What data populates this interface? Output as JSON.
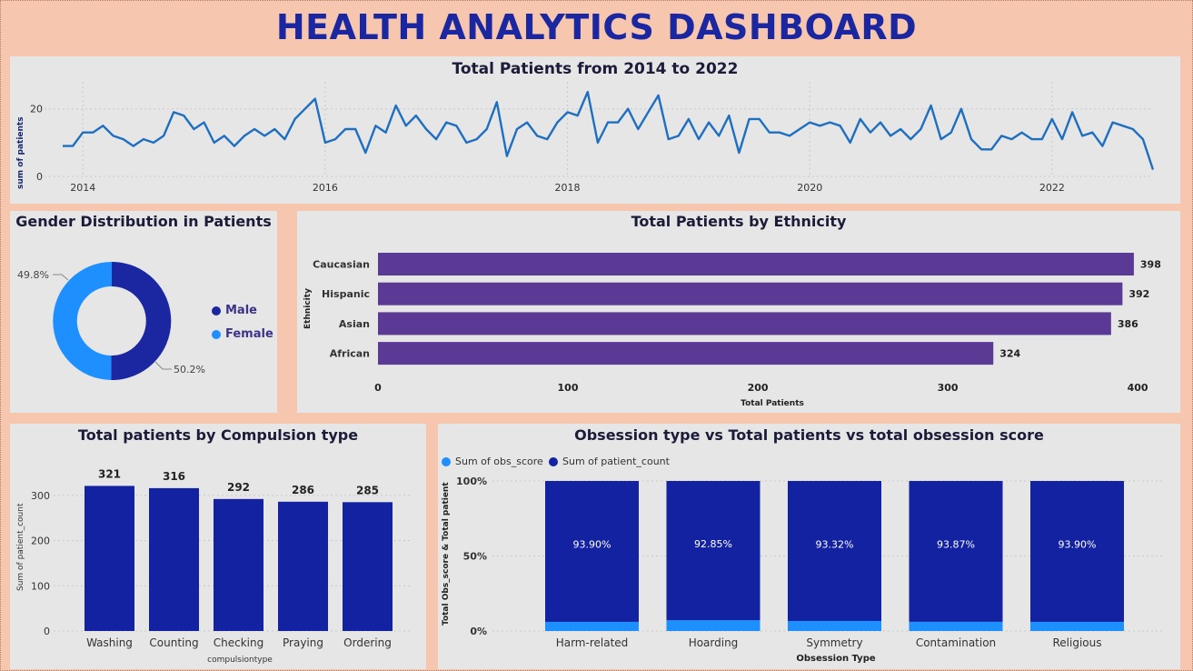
{
  "page": {
    "title": "HEALTH ANALYTICS DASHBOARD"
  },
  "colors": {
    "background": "#f6c6ae",
    "panel": "#e6e6e6",
    "title": "#1a27a1",
    "line": "#1f6fc0",
    "male": "#1a27a1",
    "female": "#1e8fff",
    "ethnicity_bar": "#5b3a95",
    "compulsion_bar": "#1322a0",
    "obs_score": "#1e8fff",
    "patient_count": "#1322a0"
  },
  "line_panel": {
    "title": "Total Patients from 2014 to 2022",
    "ylabel": "sum of patients",
    "xticks": [
      "2014",
      "2016",
      "2018",
      "2020",
      "2022"
    ],
    "yticks": [
      "0",
      "20"
    ]
  },
  "gender_panel": {
    "title": "Gender Distribution in Patients",
    "legend": [
      {
        "label": "Male"
      },
      {
        "label": "Female"
      }
    ],
    "female_pct_label": "49.8%",
    "male_pct_label": "50.2%"
  },
  "ethnicity_panel": {
    "title": "Total Patients by Ethnicity",
    "ylabel": "Ethnicity",
    "xlabel": "Total Patients",
    "xticks": [
      "0",
      "100",
      "200",
      "300",
      "400"
    ]
  },
  "compulsion_panel": {
    "title": "Total patients by Compulsion type",
    "ylabel": "Sum of patient_count",
    "xlabel": "compulsiontype",
    "yticks": [
      "0",
      "100",
      "200",
      "300"
    ]
  },
  "obsession_panel": {
    "title": "Obsession type vs Total patients vs total obsession score",
    "legend": [
      {
        "label": "Sum of obs_score"
      },
      {
        "label": "Sum of patient_count"
      }
    ],
    "ylabel": "Total Obs_score & Total patient",
    "xlabel": "Obsession Type",
    "yticks": [
      "0%",
      "50%",
      "100%"
    ]
  },
  "chart_data": [
    {
      "type": "line",
      "title": "Total Patients from 2014 to 2022",
      "xlabel": "",
      "ylabel": "sum of patients",
      "x_start": "2013-11",
      "x_step": "month",
      "xlim": [
        "2013-11",
        "2022-11"
      ],
      "ylim": [
        0,
        28
      ],
      "grid": true,
      "values": [
        9,
        9,
        13,
        13,
        15,
        12,
        11,
        9,
        11,
        10,
        12,
        19,
        18,
        14,
        16,
        10,
        12,
        9,
        12,
        14,
        12,
        14,
        11,
        17,
        20,
        23,
        10,
        11,
        14,
        14,
        7,
        15,
        13,
        21,
        15,
        18,
        14,
        11,
        16,
        15,
        10,
        11,
        14,
        22,
        6,
        14,
        16,
        12,
        11,
        16,
        19,
        18,
        25,
        10,
        16,
        16,
        20,
        14,
        19,
        24,
        11,
        12,
        17,
        11,
        16,
        12,
        18,
        7,
        17,
        17,
        13,
        13,
        12,
        14,
        16,
        15,
        16,
        15,
        10,
        17,
        13,
        16,
        12,
        14,
        11,
        14,
        21,
        11,
        13,
        20,
        11,
        8,
        8,
        12,
        11,
        13,
        11,
        11,
        17,
        11,
        19,
        12,
        13,
        9,
        16,
        15,
        14,
        11,
        2
      ]
    },
    {
      "type": "pie",
      "title": "Gender Distribution in Patients",
      "labels": [
        "Male",
        "Female"
      ],
      "values": [
        50.2,
        49.8
      ],
      "legend": "right"
    },
    {
      "type": "bar",
      "orientation": "horizontal",
      "title": "Total Patients by Ethnicity",
      "categories": [
        "Caucasian",
        "Hispanic",
        "Asian",
        "African"
      ],
      "values": [
        398,
        392,
        386,
        324
      ],
      "xlabel": "Total Patients",
      "ylabel": "Ethnicity",
      "xlim": [
        0,
        410
      ]
    },
    {
      "type": "bar",
      "title": "Total patients by Compulsion type",
      "categories": [
        "Washing",
        "Counting",
        "Checking",
        "Praying",
        "Ordering"
      ],
      "values": [
        321,
        316,
        292,
        286,
        285
      ],
      "xlabel": "compulsiontype",
      "ylabel": "Sum of patient_count",
      "ylim": [
        0,
        350
      ]
    },
    {
      "type": "bar",
      "stacked": "percent",
      "title": "Obsession type vs Total patients vs total obsession score",
      "categories": [
        "Harm-related",
        "Hoarding",
        "Symmetry",
        "Contamination",
        "Religious"
      ],
      "series": [
        {
          "name": "Sum of obs_score",
          "values": [
            6.1,
            7.15,
            6.68,
            6.13,
            6.1
          ]
        },
        {
          "name": "Sum of patient_count",
          "values": [
            93.9,
            92.85,
            93.32,
            93.87,
            93.9
          ]
        }
      ],
      "data_labels": [
        "93.90%",
        "92.85%",
        "93.32%",
        "93.87%",
        "93.90%"
      ],
      "xlabel": "Obsession Type",
      "ylabel": "Total Obs_score & Total patient",
      "ylim": [
        0,
        100
      ],
      "legend": "top-left"
    }
  ]
}
